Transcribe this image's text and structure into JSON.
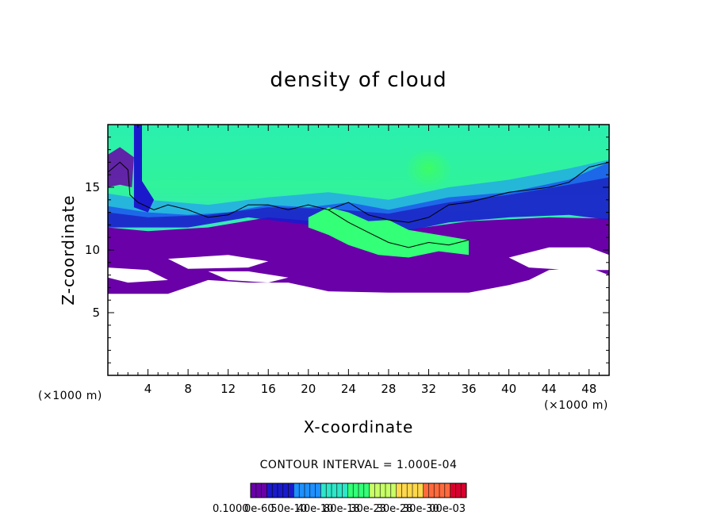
{
  "chart_data": {
    "type": "heatmap",
    "title": "density of cloud",
    "xlabel": "X-coordinate",
    "ylabel": "Z-coordinate",
    "x_unit": "(×1000 m)",
    "y_unit": "(×1000 m)",
    "xlim": [
      0,
      50
    ],
    "ylim": [
      0,
      20
    ],
    "x_ticks": [
      "4",
      "8",
      "12",
      "16",
      "20",
      "24",
      "28",
      "32",
      "36",
      "40",
      "44",
      "48"
    ],
    "y_ticks": [
      "5",
      "10",
      "15"
    ],
    "contour_interval": "CONTOUR INTERVAL = 1.000E-04",
    "colorbar_labels": [
      "0.1000",
      "0e-60",
      "50e-10",
      "40e-10",
      "80e-18",
      "30e-23",
      "30e-28",
      "30e-30",
      "00e-03"
    ],
    "colormap": [
      "#6a00a8",
      "#1a1acc",
      "#1e90ff",
      "#2ee6c8",
      "#33ff77",
      "#c8ff66",
      "#ffd84d",
      "#ff6a3d",
      "#d9002e"
    ],
    "field": {
      "cloud_base_km": 6.5,
      "cloud_top_km": 20,
      "core_region_x_km": [
        20,
        36
      ],
      "core_region_z_km": [
        9.5,
        13
      ]
    }
  }
}
